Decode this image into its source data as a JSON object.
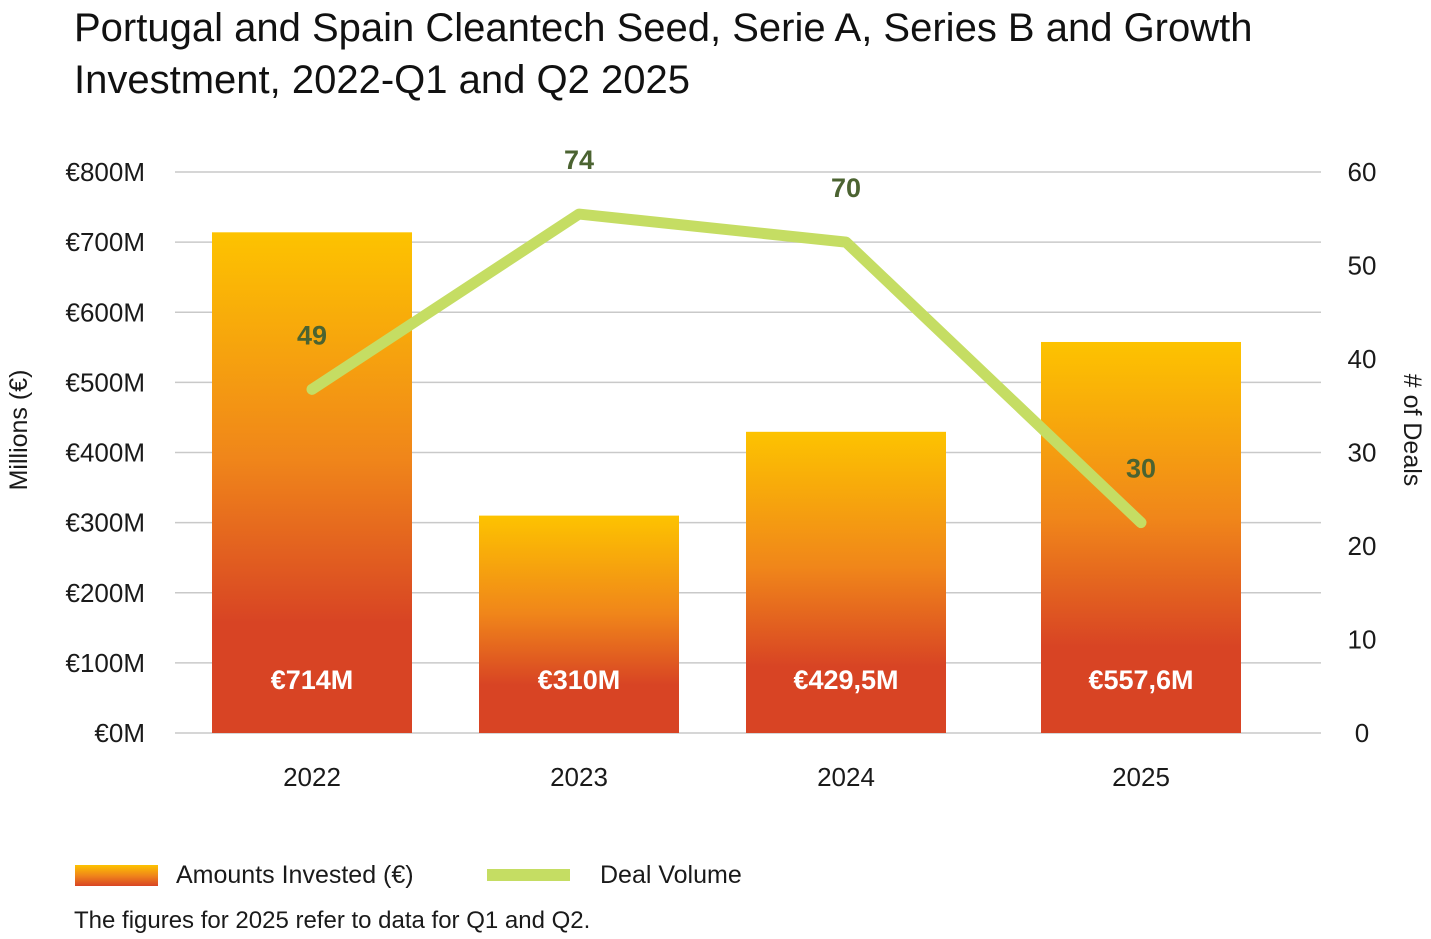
{
  "title": "Portugal and Spain Cleantech Seed, Serie A, Series B and Growth Investment, 2022-Q1 and Q2 2025",
  "footnote": "The figures for 2025 refer to data for Q1 and Q2.",
  "chart_data": {
    "type": "bar",
    "categories": [
      "2022",
      "2023",
      "2024",
      "2025"
    ],
    "y_left": {
      "label": "Millions (€)",
      "range": [
        0,
        800
      ],
      "ticks": [
        0,
        100,
        200,
        300,
        400,
        500,
        600,
        700,
        800
      ],
      "tick_labels": [
        "€0M",
        "€100M",
        "€200M",
        "€300M",
        "€400M",
        "€500M",
        "€600M",
        "€700M",
        "€800M"
      ]
    },
    "y_right": {
      "label": "# of Deals",
      "range": [
        0,
        60
      ],
      "ticks": [
        0,
        10,
        20,
        30,
        40,
        50,
        60
      ],
      "tick_labels": [
        "0",
        "10",
        "20",
        "30",
        "40",
        "50",
        "60"
      ]
    },
    "grid": true,
    "legend_position": "bottom-left",
    "series": [
      {
        "name": "Amounts Invested (€)",
        "type": "bar",
        "axis": "left",
        "values": [
          714,
          310,
          429.5,
          557.6
        ],
        "data_labels": [
          "€714M",
          "€310M",
          "€429,5M",
          "€557,6M"
        ]
      },
      {
        "name": "Deal Volume",
        "type": "line",
        "axis": "right",
        "values": [
          49,
          74,
          70,
          30
        ],
        "data_labels": [
          "49",
          "74",
          "70",
          "30"
        ]
      }
    ]
  },
  "colors": {
    "bar_top": "#fdc300",
    "bar_mid": "#f0861a",
    "bar_bottom": "#d84424",
    "line": "#c5dd63",
    "line_label": "#4b6331",
    "bar_label": "#ffffff",
    "grid": "#c9c9c9",
    "text": "#1a1a1a"
  }
}
